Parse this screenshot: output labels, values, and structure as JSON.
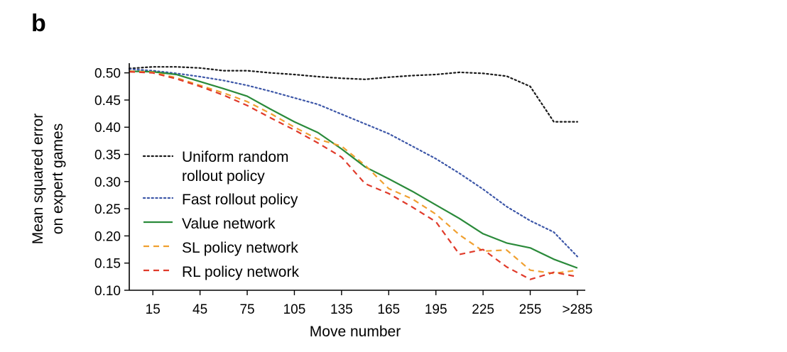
{
  "panel_label": "b",
  "chart_data": {
    "type": "line",
    "xlabel": "Move number",
    "ylabel_lines": [
      "Mean squared error",
      "on expert games"
    ],
    "x": [
      0,
      15,
      30,
      45,
      60,
      75,
      90,
      105,
      120,
      135,
      150,
      165,
      180,
      195,
      210,
      225,
      240,
      255,
      270,
      285
    ],
    "x_tick_values": [
      15,
      45,
      75,
      105,
      135,
      165,
      195,
      225,
      255,
      285
    ],
    "x_tick_labels": [
      "15",
      "45",
      "75",
      "105",
      "135",
      "165",
      "195",
      "225",
      "255",
      ">285"
    ],
    "xlim": [
      0,
      290
    ],
    "ylim": [
      0.1,
      0.51
    ],
    "y_tick_values": [
      0.1,
      0.15,
      0.2,
      0.25,
      0.3,
      0.35,
      0.4,
      0.45,
      0.5
    ],
    "y_tick_labels": [
      "0.10",
      "0.15",
      "0.20",
      "0.25",
      "0.30",
      "0.35",
      "0.40",
      "0.45",
      "0.50"
    ],
    "grid": false,
    "legend_position": "lower-left",
    "series": [
      {
        "name_lines": [
          "Uniform random",
          "rollout policy"
        ],
        "color": "#1a1a1a",
        "dash": "dotted",
        "values": [
          0.508,
          0.511,
          0.511,
          0.509,
          0.504,
          0.504,
          0.5,
          0.497,
          0.493,
          0.49,
          0.488,
          0.492,
          0.495,
          0.497,
          0.501,
          0.499,
          0.494,
          0.475,
          0.41,
          0.41
        ]
      },
      {
        "name_lines": [
          "Fast rollout policy"
        ],
        "color": "#3d57a8",
        "dash": "dotted",
        "values": [
          0.507,
          0.504,
          0.499,
          0.493,
          0.486,
          0.477,
          0.466,
          0.454,
          0.442,
          0.424,
          0.406,
          0.388,
          0.365,
          0.342,
          0.315,
          0.286,
          0.254,
          0.228,
          0.207,
          0.162
        ]
      },
      {
        "name_lines": [
          "Value network"
        ],
        "color": "#2a8a3a",
        "dash": "solid",
        "values": [
          0.503,
          0.502,
          0.497,
          0.484,
          0.471,
          0.457,
          0.433,
          0.41,
          0.39,
          0.36,
          0.327,
          0.305,
          0.282,
          0.257,
          0.232,
          0.204,
          0.187,
          0.178,
          0.157,
          0.141
        ]
      },
      {
        "name_lines": [
          "SL policy network"
        ],
        "color": "#f0a030",
        "dash": "dashed",
        "values": [
          0.503,
          0.501,
          0.491,
          0.477,
          0.463,
          0.447,
          0.425,
          0.4,
          0.378,
          0.365,
          0.33,
          0.287,
          0.268,
          0.24,
          0.202,
          0.172,
          0.174,
          0.137,
          0.131,
          0.137
        ]
      },
      {
        "name_lines": [
          "RL policy network"
        ],
        "color": "#e03a2a",
        "dash": "dashed",
        "values": [
          0.502,
          0.5,
          0.489,
          0.475,
          0.459,
          0.44,
          0.417,
          0.395,
          0.371,
          0.345,
          0.296,
          0.278,
          0.253,
          0.226,
          0.166,
          0.175,
          0.143,
          0.12,
          0.133,
          0.125
        ]
      }
    ]
  }
}
